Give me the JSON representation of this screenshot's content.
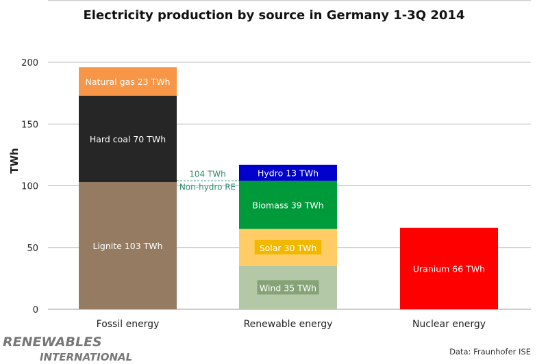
{
  "chart_data": {
    "type": "bar",
    "stacked": true,
    "title": "Electricity production by source in Germany 1-3Q 2014",
    "ylabel": "TWh",
    "xlabel": "",
    "ylim": [
      0,
      250
    ],
    "yticks": [
      0,
      50,
      100,
      150,
      200
    ],
    "grid": true,
    "categories": [
      "Fossil energy",
      "Renewable energy",
      "Nuclear energy"
    ],
    "stacks": [
      {
        "category": "Fossil energy",
        "segments": [
          {
            "name": "Lignite",
            "value": 103,
            "label": "Lignite 103 TWh",
            "color": "#957b61"
          },
          {
            "name": "Hard coal",
            "value": 70,
            "label": "Hard coal 70 TWh",
            "color": "#262626"
          },
          {
            "name": "Natural gas",
            "value": 23,
            "label": "Natural gas 23 TWh",
            "color": "#f79646"
          }
        ]
      },
      {
        "category": "Renewable energy",
        "segments": [
          {
            "name": "Wind",
            "value": 35,
            "label": "Wind 35 TWh",
            "color": "#b3c8a6",
            "label_bg": "#86a378"
          },
          {
            "name": "Solar",
            "value": 30,
            "label": "Solar 30 TWh",
            "color": "#ffcc66",
            "label_bg": "#f2b800"
          },
          {
            "name": "Biomass",
            "value": 39,
            "label": "Biomass 39 TWh",
            "color": "#009a3a"
          },
          {
            "name": "Hydro",
            "value": 13,
            "label": "Hydro 13 TWh",
            "color": "#0000cc"
          }
        ]
      },
      {
        "category": "Nuclear energy",
        "segments": [
          {
            "name": "Uranium",
            "value": 66,
            "label": "Uranium 66 TWh",
            "color": "#ff0000"
          }
        ]
      }
    ],
    "annotation": {
      "value": 104,
      "line1": "104 TWh",
      "line2": "Non-hydro RE",
      "color": "#2e8a6c"
    }
  },
  "branding": {
    "logo_line1": "RENEWABLES",
    "logo_line2": "INTERNATIONAL",
    "source": "Data: Fraunhofer  ISE"
  }
}
